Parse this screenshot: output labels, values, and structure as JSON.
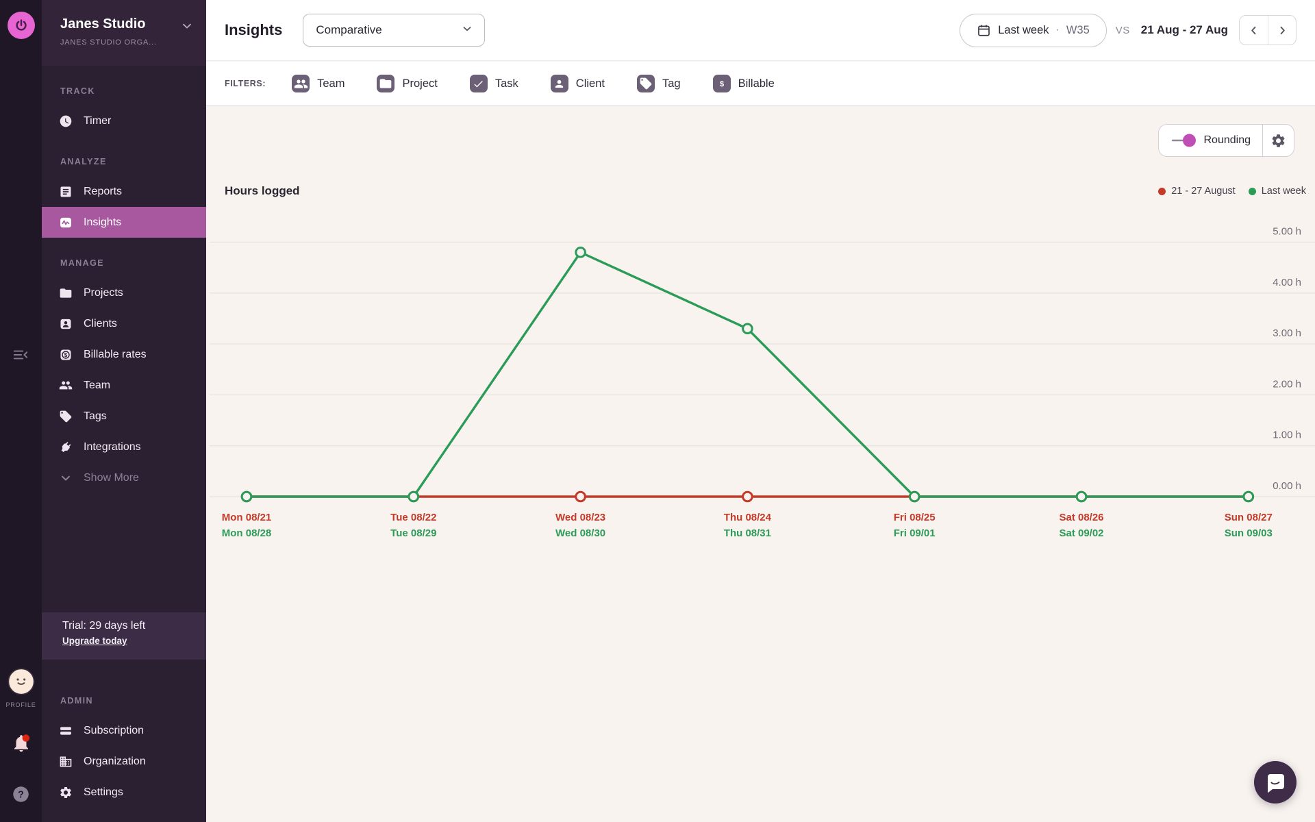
{
  "workspace": {
    "name": "Janes Studio",
    "org": "JANES STUDIO ORGA..."
  },
  "rail": {
    "profile_label": "PROFILE"
  },
  "sidebar": {
    "sections": [
      {
        "label": "TRACK",
        "items": [
          {
            "label": "Timer",
            "icon": "clock-icon"
          }
        ]
      },
      {
        "label": "ANALYZE",
        "items": [
          {
            "label": "Reports",
            "icon": "reports-icon"
          },
          {
            "label": "Insights",
            "icon": "insights-icon",
            "active": true
          }
        ]
      },
      {
        "label": "MANAGE",
        "items": [
          {
            "label": "Projects",
            "icon": "folder-icon"
          },
          {
            "label": "Clients",
            "icon": "client-card-icon"
          },
          {
            "label": "Billable rates",
            "icon": "billable-icon"
          },
          {
            "label": "Team",
            "icon": "team-icon"
          },
          {
            "label": "Tags",
            "icon": "tag-icon"
          },
          {
            "label": "Integrations",
            "icon": "plug-icon"
          },
          {
            "label": "Show More",
            "icon": "chevron-down-icon",
            "muted": true
          }
        ]
      }
    ],
    "trial": {
      "text": "Trial: 29 days left",
      "link_label": "Upgrade today"
    },
    "admin_section": {
      "label": "ADMIN",
      "items": [
        {
          "label": "Subscription",
          "icon": "credit-card-icon"
        },
        {
          "label": "Organization",
          "icon": "organization-icon"
        },
        {
          "label": "Settings",
          "icon": "gear-icon"
        }
      ]
    }
  },
  "topbar": {
    "title": "Insights",
    "view_select_value": "Comparative",
    "period_button": {
      "label": "Last week",
      "separator": "·",
      "week": "W35"
    },
    "vs_label": "VS",
    "compare_range": "21 Aug - 27 Aug"
  },
  "filterbar": {
    "label": "FILTERS:",
    "filters": [
      {
        "label": "Team",
        "icon": "team-icon"
      },
      {
        "label": "Project",
        "icon": "folder-icon"
      },
      {
        "label": "Task",
        "icon": "check-icon"
      },
      {
        "label": "Client",
        "icon": "person-icon"
      },
      {
        "label": "Tag",
        "icon": "tag-icon"
      },
      {
        "label": "Billable",
        "icon": "dollar-icon"
      }
    ]
  },
  "toolbar": {
    "rounding_label": "Rounding"
  },
  "chart_data": {
    "type": "line",
    "title": "Hours logged",
    "units": "h",
    "ylim": [
      0,
      5
    ],
    "ytick_values": [
      0,
      1,
      2,
      3,
      4,
      5
    ],
    "ytick_labels": [
      "0.00 h",
      "1.00 h",
      "2.00 h",
      "3.00 h",
      "4.00 h",
      "5.00 h"
    ],
    "grid": true,
    "legend_position": "top-right",
    "series": [
      {
        "name": "21 - 27 August",
        "color": "#c43a29",
        "tick_labels": [
          "Mon 08/21",
          "Tue 08/22",
          "Wed 08/23",
          "Thu 08/24",
          "Fri 08/25",
          "Sat 08/26",
          "Sun 08/27"
        ],
        "values": [
          0,
          0,
          0,
          0,
          0,
          0,
          0
        ]
      },
      {
        "name": "Last week",
        "color": "#2b9b58",
        "tick_labels": [
          "Mon 08/28",
          "Tue 08/29",
          "Wed 08/30",
          "Thu 08/31",
          "Fri 09/01",
          "Sat 09/02",
          "Sun 09/03"
        ],
        "values": [
          0,
          0,
          4.8,
          3.3,
          0,
          0,
          0
        ]
      }
    ]
  }
}
